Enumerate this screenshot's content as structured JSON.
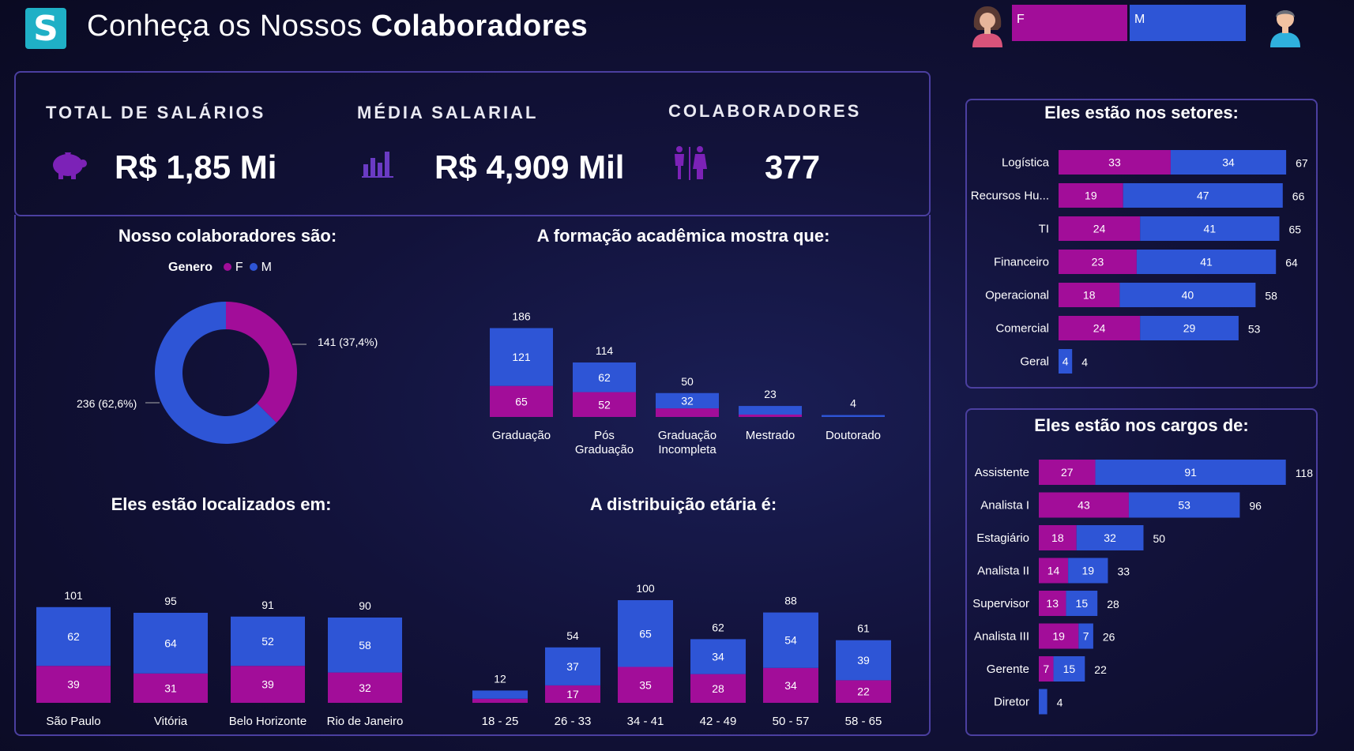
{
  "header": {
    "logo_letter": "S",
    "title_light": "Conheça os Nossos ",
    "title_bold": "Colaboradores",
    "slicer": {
      "f_label": "F",
      "m_label": "M"
    }
  },
  "colors": {
    "female": "#a20d99",
    "male": "#2e55d6",
    "panel_border": "#4b3fa0"
  },
  "kpis": [
    {
      "label": "TOTAL DE SALÁRIOS",
      "value": "R$ 1,85 Mi",
      "icon": "piggy-bank-icon"
    },
    {
      "label": "MÉDIA SALARIAL",
      "value": "R$ 4,909 Mil",
      "icon": "bar-chart-icon"
    },
    {
      "label": "COLABORADORES",
      "value": "377",
      "icon": "people-icon"
    }
  ],
  "gender": {
    "title": "Nosso colaboradores são:",
    "legend_title": "Genero",
    "legend": [
      "F",
      "M"
    ],
    "label_f": "141 (37,4%)",
    "label_m": "236 (62,6%)"
  },
  "education_title": "A formação acadêmica mostra que:",
  "location_title": "Eles estão localizados em:",
  "age_title": "A distribuição etária é:",
  "sector_title": "Eles estão nos setores:",
  "role_title": "Eles estão nos cargos de:",
  "chart_data": [
    {
      "id": "gender",
      "type": "pie",
      "labels": [
        "F",
        "M"
      ],
      "values": [
        141,
        236
      ],
      "percent": [
        37.4,
        62.6
      ]
    },
    {
      "id": "education",
      "type": "bar",
      "stacked": true,
      "categories": [
        "Graduação",
        "Pós Graduação",
        "Graduação Incompleta",
        "Mestrado",
        "Doutorado"
      ],
      "series": [
        {
          "name": "F",
          "values": [
            65,
            52,
            18,
            5,
            0
          ]
        },
        {
          "name": "M",
          "values": [
            121,
            62,
            32,
            18,
            4
          ]
        }
      ],
      "totals": [
        186,
        114,
        50,
        23,
        4
      ],
      "segment_labels": [
        [
          65,
          121
        ],
        [
          52,
          62
        ],
        [
          null,
          32
        ],
        [
          null,
          null
        ],
        [
          null,
          null
        ]
      ]
    },
    {
      "id": "location",
      "type": "bar",
      "stacked": true,
      "categories": [
        "São Paulo",
        "Vitória",
        "Belo Horizonte",
        "Rio de Janeiro"
      ],
      "series": [
        {
          "name": "F",
          "values": [
            39,
            31,
            39,
            32
          ]
        },
        {
          "name": "M",
          "values": [
            62,
            64,
            52,
            58
          ]
        }
      ],
      "totals": [
        101,
        95,
        91,
        90
      ]
    },
    {
      "id": "age",
      "type": "bar",
      "stacked": true,
      "categories": [
        "18 - 25",
        "26 - 33",
        "34 - 41",
        "42 - 49",
        "50 - 57",
        "58 - 65"
      ],
      "series": [
        {
          "name": "F",
          "values": [
            4,
            17,
            35,
            28,
            34,
            22
          ]
        },
        {
          "name": "M",
          "values": [
            8,
            37,
            65,
            34,
            54,
            39
          ]
        }
      ],
      "totals": [
        12,
        54,
        100,
        62,
        88,
        61
      ],
      "segment_labels": [
        [
          null,
          null
        ],
        [
          17,
          37
        ],
        [
          35,
          65
        ],
        [
          28,
          34
        ],
        [
          34,
          54
        ],
        [
          22,
          39
        ]
      ]
    },
    {
      "id": "sector",
      "type": "bar",
      "orientation": "horizontal",
      "stacked": true,
      "categories": [
        "Logística",
        "Recursos Hu...",
        "TI",
        "Financeiro",
        "Operacional",
        "Comercial",
        "Geral"
      ],
      "series": [
        {
          "name": "F",
          "values": [
            33,
            19,
            24,
            23,
            18,
            24,
            0
          ]
        },
        {
          "name": "M",
          "values": [
            34,
            47,
            41,
            41,
            40,
            29,
            4
          ]
        }
      ],
      "totals": [
        67,
        66,
        65,
        64,
        58,
        53,
        4
      ]
    },
    {
      "id": "role",
      "type": "bar",
      "orientation": "horizontal",
      "stacked": true,
      "categories": [
        "Assistente",
        "Analista I",
        "Estagiário",
        "Analista II",
        "Supervisor",
        "Analista III",
        "Gerente",
        "Diretor"
      ],
      "series": [
        {
          "name": "F",
          "values": [
            27,
            43,
            18,
            14,
            13,
            19,
            7,
            0
          ]
        },
        {
          "name": "M",
          "values": [
            91,
            53,
            32,
            19,
            15,
            7,
            15,
            4
          ]
        }
      ],
      "totals": [
        118,
        96,
        50,
        33,
        28,
        26,
        22,
        4
      ],
      "segment_labels": [
        [
          27,
          91
        ],
        [
          43,
          53
        ],
        [
          18,
          32
        ],
        [
          14,
          19
        ],
        [
          13,
          15
        ],
        [
          19,
          7
        ],
        [
          7,
          15
        ],
        [
          null,
          null
        ]
      ]
    }
  ]
}
